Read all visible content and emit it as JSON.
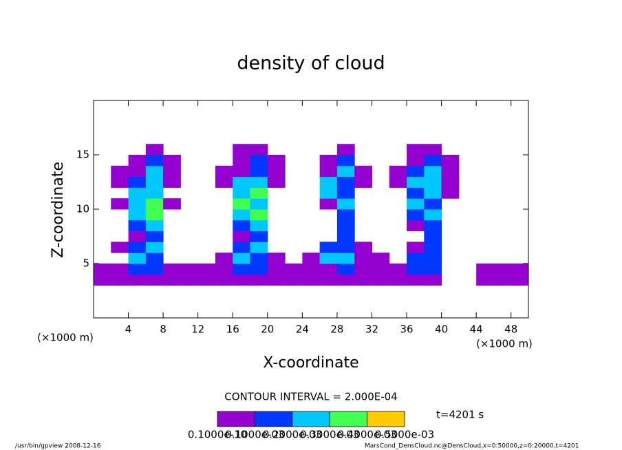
{
  "chart_data": {
    "type": "contour",
    "title": "density of cloud",
    "xlabel": "X-coordinate",
    "ylabel": "Z-coordinate",
    "xunit_left": "(×1000 m)",
    "xunit_right": "(×1000 m)",
    "contour_interval": "CONTOUR INTERVAL = 2.000E-04",
    "time_label": "t=4201 s",
    "footer_left": "/usr/bin/gpview  2008-12-16",
    "footer_right": "MarsCond_DensCloud.nc@DensCloud,x=0:50000,z=0:20000,t=4201",
    "xlim": [
      0,
      50
    ],
    "ylim": [
      0,
      20
    ],
    "xticks": [
      4,
      8,
      12,
      16,
      20,
      24,
      28,
      32,
      36,
      40,
      44,
      48
    ],
    "yticks": [
      5,
      10,
      15
    ],
    "x": [
      1,
      3,
      5,
      7,
      9,
      11,
      13,
      15,
      17,
      19,
      21,
      23,
      25,
      27,
      29,
      31,
      33,
      35,
      37,
      39,
      41,
      43,
      45,
      47,
      49
    ],
    "y": [
      3.5,
      4.5,
      5.5,
      6.5,
      7.5,
      8.5,
      9.5,
      10.5,
      11.5,
      12.5,
      13.5,
      14.5,
      15.5
    ],
    "cell_width": 2,
    "cell_height": 1,
    "levels": [
      {
        "value": 1e-11,
        "label": "0.1000e-10"
      },
      {
        "value": 0.0001,
        "label": "0.1000e-03"
      },
      {
        "value": 0.0002,
        "label": "0.2000e-03"
      },
      {
        "value": 0.0003,
        "label": "0.3000e-03"
      },
      {
        "value": 0.0004,
        "label": "0.4000e-03"
      },
      {
        "value": 0.0005,
        "label": "0.5000e-03"
      }
    ],
    "level_colors": [
      "#9400d0",
      "#0038ff",
      "#00c8ff",
      "#40ff50",
      "#ffcc00"
    ],
    "values": [
      [
        1e-05,
        1e-05,
        1e-05,
        1e-05,
        1e-05,
        1e-05,
        1e-05,
        1e-05,
        1e-05,
        1e-05,
        1e-05,
        1e-05,
        1e-05,
        1e-05,
        1e-05,
        1e-05,
        1e-05,
        1e-05,
        1e-05,
        1e-05,
        0,
        0,
        1e-05,
        1e-05,
        1e-05
      ],
      [
        1e-05,
        1e-05,
        0.0001,
        0.0001,
        1e-05,
        1e-05,
        1e-05,
        1e-05,
        0.0001,
        0.0001,
        1e-05,
        1e-05,
        1e-05,
        1e-05,
        0.0001,
        1e-05,
        1e-05,
        1e-05,
        0.0001,
        0.0001,
        0,
        0,
        1e-05,
        1e-05,
        1e-05
      ],
      [
        0,
        0,
        0.0002,
        0.0001,
        0,
        0,
        0,
        1e-05,
        0.0002,
        0.0001,
        1e-05,
        0,
        1e-05,
        0.0002,
        0.0002,
        1e-05,
        1e-05,
        0,
        0.0001,
        0.0001,
        0,
        0,
        0,
        0,
        0
      ],
      [
        0,
        1e-05,
        0.0001,
        0.0002,
        0,
        0,
        0,
        0,
        0.0001,
        0.0002,
        0,
        0,
        0,
        0.0001,
        0.0001,
        1e-05,
        0,
        0,
        1e-05,
        0.0001,
        0,
        0,
        0,
        0,
        0
      ],
      [
        0,
        0,
        1e-05,
        0.0001,
        0,
        0,
        0,
        0,
        1e-05,
        0.0001,
        0,
        0,
        0,
        0,
        0.0001,
        0,
        0,
        0,
        0,
        0.0001,
        0,
        0,
        0,
        0,
        0
      ],
      [
        0,
        0,
        0.0001,
        0.0002,
        0,
        0,
        0,
        0,
        0.0001,
        0.0002,
        0,
        0,
        0,
        0,
        0.0001,
        0,
        0,
        0,
        1e-05,
        0.0001,
        0,
        0,
        0,
        0,
        0
      ],
      [
        0,
        0,
        0.0002,
        0.0003,
        0,
        0,
        0,
        0,
        0.0002,
        0.0003,
        0,
        0,
        0,
        0,
        0.0001,
        0,
        0,
        0,
        0.0001,
        0.0002,
        0,
        0,
        0,
        0,
        0
      ],
      [
        0,
        1e-05,
        0.0002,
        0.0003,
        1e-05,
        0,
        0,
        0,
        0.0003,
        0.0002,
        0,
        0,
        0,
        1e-05,
        0.0002,
        0,
        0,
        0,
        0.0002,
        0.0001,
        0,
        0,
        0,
        0,
        0
      ],
      [
        0,
        0,
        0.0002,
        0.0002,
        0,
        0,
        0,
        0,
        0.0002,
        0.0003,
        0,
        0,
        0,
        0.0002,
        0.0001,
        0,
        0,
        0,
        0.0001,
        0.0002,
        1e-05,
        0,
        0,
        0,
        0
      ],
      [
        0,
        1e-05,
        0.0001,
        0.0002,
        1e-05,
        0,
        0,
        1e-05,
        0.0002,
        0.0002,
        1e-05,
        0,
        0,
        0.0002,
        0.0001,
        1e-05,
        0,
        1e-05,
        0.0002,
        0.0002,
        1e-05,
        0,
        0,
        0,
        0
      ],
      [
        0,
        1e-05,
        1e-05,
        0.0002,
        1e-05,
        0,
        0,
        1e-05,
        1e-05,
        0.0001,
        1e-05,
        0,
        0,
        1e-05,
        0.0002,
        1e-05,
        0,
        1e-05,
        0.0001,
        0.0002,
        1e-05,
        0,
        0,
        0,
        0
      ],
      [
        0,
        0,
        1e-05,
        0.0001,
        1e-05,
        0,
        0,
        0,
        1e-05,
        0.0001,
        1e-05,
        0,
        0,
        1e-05,
        0.0001,
        0,
        0,
        0,
        1e-05,
        0.0001,
        1e-05,
        0,
        0,
        0,
        0
      ],
      [
        0,
        0,
        0,
        1e-05,
        0,
        0,
        0,
        0,
        1e-05,
        1e-05,
        0,
        0,
        0,
        0,
        1e-05,
        0,
        0,
        0,
        1e-05,
        1e-05,
        0,
        0,
        0,
        0,
        0
      ]
    ]
  }
}
